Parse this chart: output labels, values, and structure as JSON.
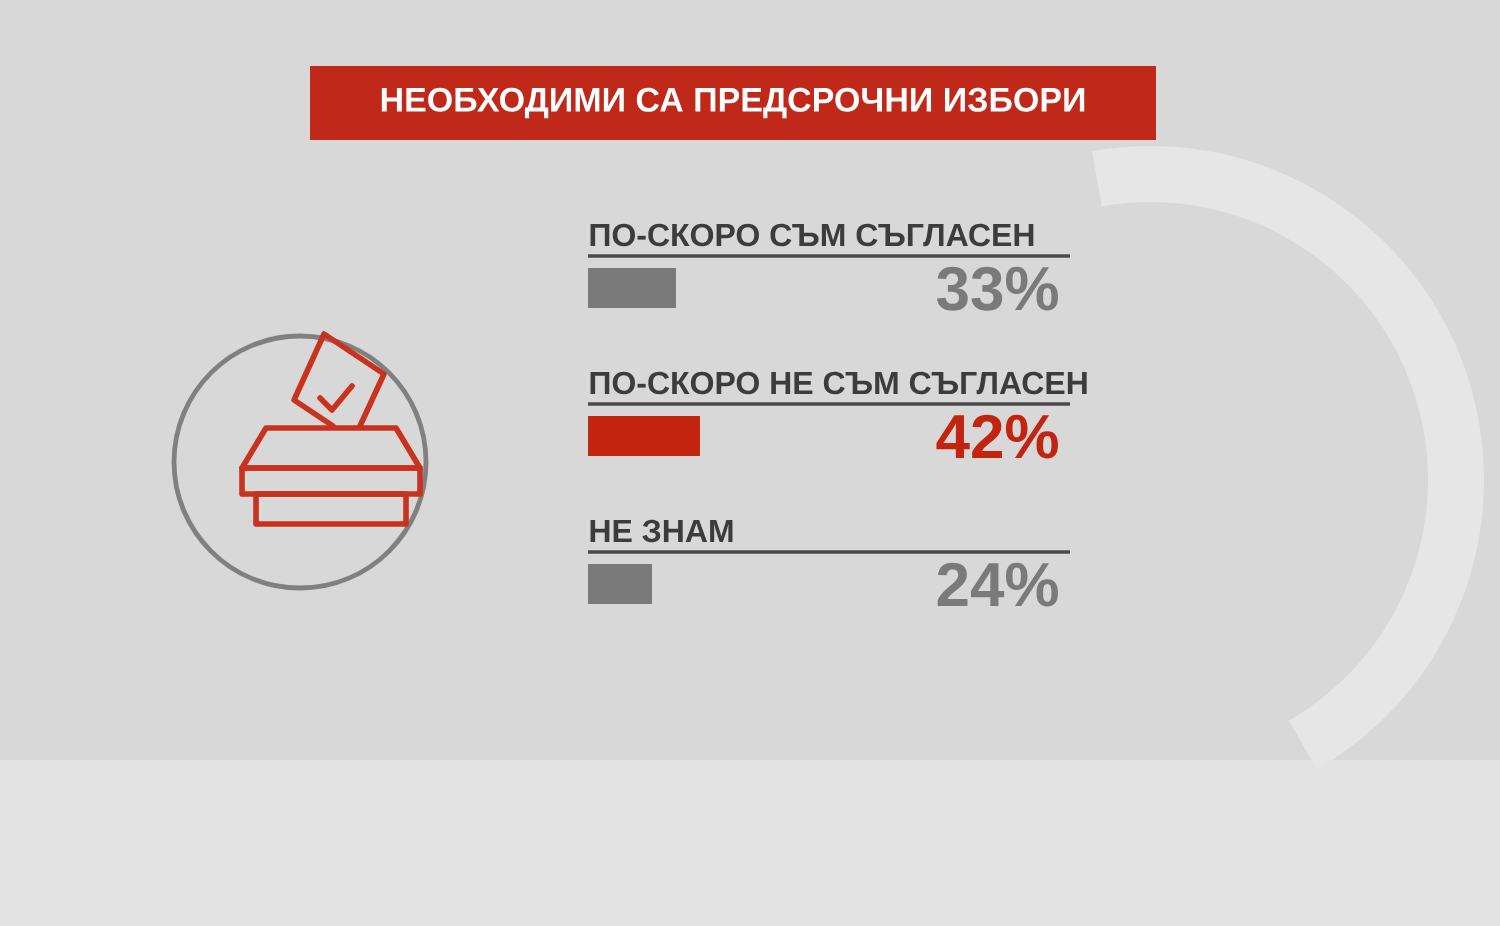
{
  "chart_data": {
    "type": "bar",
    "orientation": "horizontal",
    "title": "НЕОБХОДИМИ СА ПРЕДСРОЧНИ ИЗБОРИ",
    "categories": [
      "ПО-СКОРО СЪМ СЪГЛАСЕН",
      "ПО-СКОРО НЕ СЪМ СЪГЛАСЕН",
      "НЕ ЗНАМ"
    ],
    "values": [
      33,
      42,
      24
    ],
    "colors": [
      "#7a7a7a",
      "#c2240f",
      "#7a7a7a"
    ],
    "value_labels": [
      "33%",
      "42%",
      "24%"
    ]
  }
}
